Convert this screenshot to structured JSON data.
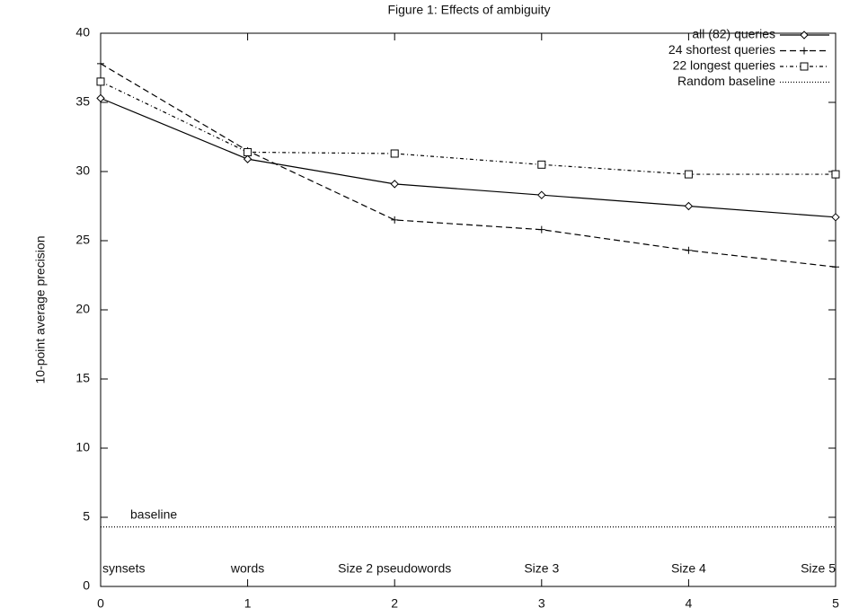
{
  "chart_data": {
    "type": "line",
    "title": "Figure 1: Effects of ambiguity",
    "ylabel": "10-point average precision",
    "x": [
      0,
      1,
      2,
      3,
      4,
      5
    ],
    "xlim": [
      0,
      5
    ],
    "xticks": [
      0,
      1,
      2,
      3,
      4,
      5
    ],
    "ylim": [
      0,
      40
    ],
    "yticks": [
      0,
      5,
      10,
      15,
      20,
      25,
      30,
      35,
      40
    ],
    "point_labels": [
      "synsets",
      "words",
      "Size 2 pseudowords",
      "Size 3",
      "Size 4",
      "Size 5"
    ],
    "annotation": "baseline",
    "legend": "top-right",
    "series": [
      {
        "name": "all (82) queries",
        "color": "#000000",
        "marker": "diamond",
        "dash": "solid",
        "values": [
          35.3,
          30.9,
          29.1,
          28.3,
          27.5,
          26.7
        ]
      },
      {
        "name": "24 shortest queries",
        "color": "#000000",
        "marker": "plus",
        "dash": "dashed",
        "values": [
          37.8,
          31.5,
          26.5,
          25.8,
          24.3,
          23.1
        ]
      },
      {
        "name": "22 longest queries",
        "color": "#000000",
        "marker": "square",
        "dash": "dashdot",
        "values": [
          36.5,
          31.4,
          31.3,
          30.5,
          29.8,
          29.8
        ]
      },
      {
        "name": "Random baseline",
        "color": "#000000",
        "marker": "none",
        "dash": "dotted",
        "values": [
          4.3,
          4.3,
          4.3,
          4.3,
          4.3,
          4.3
        ]
      }
    ]
  }
}
